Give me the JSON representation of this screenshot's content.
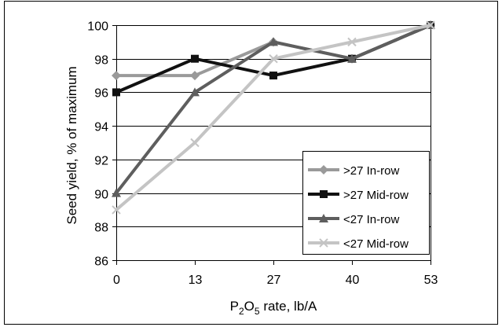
{
  "chart_data": {
    "type": "line",
    "xlabel_main": "P",
    "xlabel_sub": "2",
    "xlabel_mid": "O",
    "xlabel_sub2": "5",
    "xlabel_tail": " rate, lb/A",
    "ylabel": "Seed yield, % of maximum",
    "categories": [
      "0",
      "13",
      "27",
      "40",
      "53"
    ],
    "ylim": [
      86,
      100
    ],
    "yticks": [
      "86",
      "88",
      "90",
      "92",
      "94",
      "96",
      "98",
      "100"
    ],
    "grid": "horizontal",
    "legend_position": "bottom-right",
    "series": [
      {
        "name": ">27 In-row",
        "marker": "diamond",
        "color": "#9a9a9a",
        "values": [
          97,
          97,
          99,
          98,
          100
        ]
      },
      {
        "name": ">27 Mid-row",
        "marker": "square",
        "color": "#111111",
        "values": [
          96,
          98,
          97,
          98,
          100
        ]
      },
      {
        "name": "<27 In-row",
        "marker": "triangle",
        "color": "#5e5e5e",
        "values": [
          90,
          96,
          99,
          98,
          100
        ]
      },
      {
        "name": "<27 Mid-row",
        "marker": "x",
        "color": "#c4c4c4",
        "values": [
          89,
          93,
          98,
          99,
          100
        ]
      }
    ]
  }
}
